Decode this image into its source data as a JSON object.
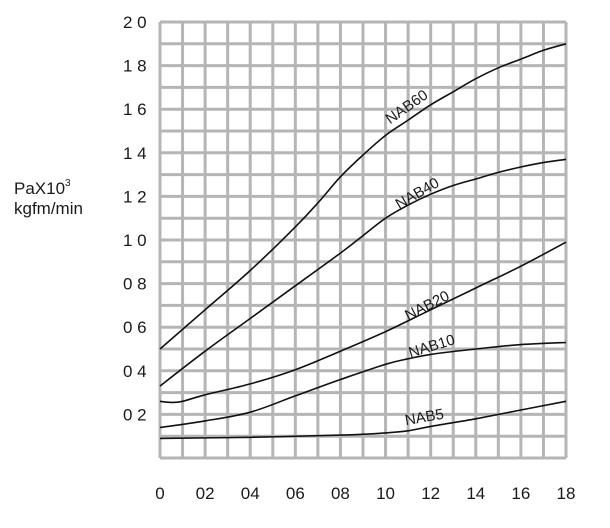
{
  "chart_data": {
    "type": "line",
    "ylabel_line1": "PaX10",
    "ylabel_sup": "3",
    "ylabel_line2": "kgfm/min",
    "xlim": [
      0,
      18
    ],
    "ylim": [
      0,
      20
    ],
    "x_ticks": [
      {
        "value": 0,
        "label": "0"
      },
      {
        "value": 2,
        "label": "02"
      },
      {
        "value": 4,
        "label": "04"
      },
      {
        "value": 6,
        "label": "06"
      },
      {
        "value": 8,
        "label": "08"
      },
      {
        "value": 10,
        "label": "10"
      },
      {
        "value": 12,
        "label": "12"
      },
      {
        "value": 14,
        "label": "14"
      },
      {
        "value": 16,
        "label": "16"
      },
      {
        "value": 18,
        "label": "18"
      }
    ],
    "y_ticks": [
      {
        "value": 2,
        "label": "0 2"
      },
      {
        "value": 4,
        "label": "0 4"
      },
      {
        "value": 6,
        "label": "0 6"
      },
      {
        "value": 8,
        "label": "0 8"
      },
      {
        "value": 10,
        "label": "1 0"
      },
      {
        "value": 12,
        "label": "1 2"
      },
      {
        "value": 14,
        "label": "1 4"
      },
      {
        "value": 16,
        "label": "1 6"
      },
      {
        "value": 18,
        "label": "1 8"
      },
      {
        "value": 20,
        "label": "2 0"
      }
    ],
    "grid": true,
    "series": [
      {
        "name": "NAB60",
        "x": [
          0,
          2,
          4,
          6,
          7,
          8,
          9,
          10,
          11,
          12,
          13,
          14,
          15,
          16,
          17,
          18
        ],
        "y": [
          5.0,
          6.8,
          8.6,
          10.6,
          11.7,
          12.9,
          13.9,
          14.8,
          15.5,
          16.2,
          16.8,
          17.4,
          17.9,
          18.3,
          18.7,
          19.0
        ],
        "label_at": [
          10.2,
          15.3
        ],
        "label_angle": -35
      },
      {
        "name": "NAB40",
        "x": [
          0,
          2,
          4,
          6,
          8,
          9,
          10,
          11,
          12,
          13,
          14,
          15,
          16,
          17,
          18
        ],
        "y": [
          3.3,
          4.9,
          6.4,
          7.9,
          9.4,
          10.2,
          11.0,
          11.6,
          12.1,
          12.5,
          12.8,
          13.1,
          13.35,
          13.55,
          13.7
        ],
        "label_at": [
          10.6,
          11.4
        ],
        "label_angle": -30
      },
      {
        "name": "NAB20",
        "x": [
          0,
          0.5,
          1,
          2,
          4,
          6,
          8,
          10,
          12,
          14,
          16,
          18
        ],
        "y": [
          2.6,
          2.55,
          2.6,
          2.9,
          3.4,
          4.05,
          4.9,
          5.8,
          6.8,
          7.8,
          8.8,
          9.9
        ],
        "label_at": [
          11.0,
          6.3
        ],
        "label_angle": -27
      },
      {
        "name": "NAB10",
        "x": [
          0,
          2,
          4,
          6,
          8,
          10,
          11,
          12,
          14,
          16,
          18
        ],
        "y": [
          1.4,
          1.7,
          2.1,
          2.85,
          3.6,
          4.3,
          4.55,
          4.75,
          5.0,
          5.2,
          5.3
        ],
        "label_at": [
          11.1,
          4.6
        ],
        "label_angle": -17
      },
      {
        "name": "NAB5",
        "x": [
          0,
          4,
          8,
          10,
          11,
          12,
          14,
          16,
          18
        ],
        "y": [
          0.9,
          0.95,
          1.05,
          1.15,
          1.25,
          1.45,
          1.8,
          2.2,
          2.6
        ],
        "label_at": [
          10.9,
          1.5
        ],
        "label_angle": -10
      }
    ]
  }
}
